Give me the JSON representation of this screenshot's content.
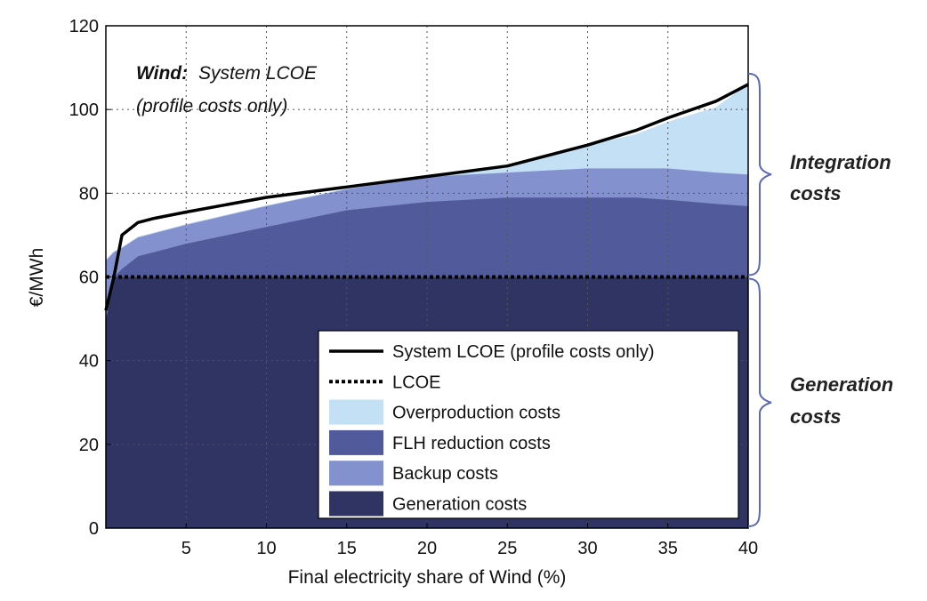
{
  "chart_data": {
    "type": "area",
    "title_bold": "Wind:",
    "title_rest": "System LCOE",
    "subtitle": "(profile costs only)",
    "xlabel": "Final electricity share of Wind (%)",
    "ylabel": "€/MWh",
    "xlim": [
      0,
      40
    ],
    "ylim": [
      0,
      120
    ],
    "xticks": [
      "5",
      "10",
      "15",
      "20",
      "25",
      "30",
      "35",
      "40"
    ],
    "xtick_values": [
      5,
      10,
      15,
      20,
      25,
      30,
      35,
      40
    ],
    "yticks": [
      "0",
      "20",
      "40",
      "60",
      "80",
      "100",
      "120"
    ],
    "ytick_values": [
      0,
      20,
      40,
      60,
      80,
      100,
      120
    ],
    "grid": "dotted",
    "legend_position": "bottom-right",
    "x": [
      0,
      0.5,
      1,
      2,
      3,
      5,
      10,
      15,
      20,
      25,
      30,
      33,
      35,
      38,
      40
    ],
    "series": [
      {
        "name": "Generation costs",
        "kind": "area",
        "color": "#2f3463",
        "values": [
          50,
          60,
          60,
          60,
          60,
          60,
          60,
          60,
          60,
          60,
          60,
          60,
          60,
          60,
          60
        ]
      },
      {
        "name": "FLH reduction costs",
        "kind": "area",
        "color": "#515a9a",
        "values": [
          0,
          0,
          2,
          5,
          6,
          8,
          12,
          16,
          18,
          19,
          19,
          19,
          18.5,
          17.5,
          17
        ]
      },
      {
        "name": "Backup costs",
        "kind": "area",
        "color": "#8392cf",
        "values": [
          14,
          6,
          5,
          4.5,
          4.5,
          4.5,
          5,
          5,
          6,
          6,
          7,
          7,
          7.5,
          7.5,
          7.5
        ]
      },
      {
        "name": "Overproduction costs",
        "kind": "area",
        "color": "#c4e0f5",
        "values": [
          0,
          0,
          0,
          0,
          0,
          0,
          0,
          0,
          0,
          1,
          5.5,
          8,
          11,
          15.5,
          21.5
        ]
      },
      {
        "name": "System LCOE (profile costs only)",
        "kind": "line",
        "style": "solid",
        "color": "#000000",
        "values": [
          52,
          60,
          70,
          73,
          74,
          75.5,
          79,
          81.5,
          84,
          86.5,
          91.5,
          95,
          98,
          102,
          106
        ]
      },
      {
        "name": "LCOE",
        "kind": "line",
        "style": "dotted",
        "color": "#000000",
        "values": [
          60,
          60,
          60,
          60,
          60,
          60,
          60,
          60,
          60,
          60,
          60,
          60,
          60,
          60,
          60
        ]
      }
    ],
    "legend_order": [
      "System LCOE (profile costs only)",
      "LCOE",
      "Overproduction costs",
      "FLH reduction costs",
      "Backup costs",
      "Generation costs"
    ],
    "annotations": {
      "integration_costs": {
        "line1": "Integration",
        "line2": "costs",
        "range": [
          60,
          106
        ]
      },
      "generation_costs": {
        "line1": "Generation",
        "line2": "costs",
        "range": [
          0,
          60
        ]
      }
    }
  }
}
